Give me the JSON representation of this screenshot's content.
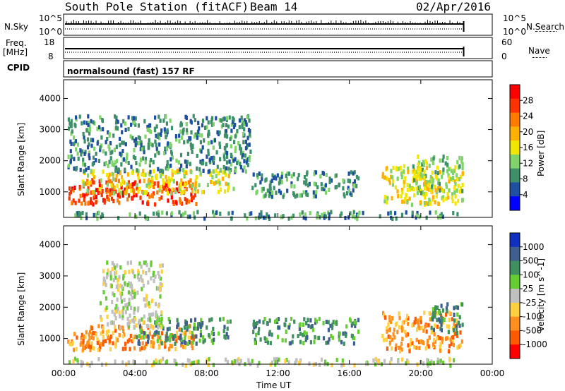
{
  "header": {
    "station": "South Pole Station (fitACF)",
    "beam": "Beam 14",
    "date": "02/Apr/2016"
  },
  "strips": {
    "nsky_label": "N.Sky",
    "nsky_ticks": [
      "10^5",
      "10^0"
    ],
    "nsearch_label": "N.Search",
    "nsearch_ticks": [
      "10^5",
      "10^0"
    ],
    "freq_label_1": "Freq.",
    "freq_label_2": "[MHz]",
    "freq_ticks": [
      "18",
      "8"
    ],
    "nave_label": "Nave",
    "nave_ticks": [
      "60",
      "0"
    ],
    "cpid_label": "CPID",
    "cpid_value": "normalsound (fast) 157 RF"
  },
  "chart_data": [
    {
      "type": "heatmap",
      "name": "power-panel",
      "xlabel": "Time UT",
      "ylabel": "Slant Range [km]",
      "xlim": [
        0,
        24
      ],
      "ylim": [
        180,
        4600
      ],
      "x_ticks": [
        "00:00",
        "04:00",
        "08:00",
        "12:00",
        "16:00",
        "20:00",
        "00:00"
      ],
      "y_ticks": [
        1000,
        2000,
        3000,
        4000
      ],
      "colorbar_label": "Power [dB]",
      "colorbar_ticks": [
        "28",
        "24",
        "20",
        "16",
        "12",
        "8",
        "4"
      ],
      "colorbar_colors": [
        "#ff0000",
        "#ff3300",
        "#ff7a00",
        "#ffb000",
        "#f2e600",
        "#7fd36a",
        "#3f8f6a",
        "#1f4fa0",
        "#0000ff"
      ],
      "data_end_hour": 22.4,
      "scatter_regions": [
        {
          "t0": 0.2,
          "t1": 2.6,
          "r0": 650,
          "r1": 1250,
          "level": 0.93
        },
        {
          "t0": 1.0,
          "t1": 4.5,
          "r0": 700,
          "r1": 1450,
          "level": 0.88
        },
        {
          "t0": 4.6,
          "t1": 7.4,
          "r0": 650,
          "r1": 1500,
          "level": 0.86
        },
        {
          "t0": 1.0,
          "t1": 9.5,
          "r0": 1000,
          "r1": 1750,
          "level": 0.45
        },
        {
          "t0": 0.2,
          "t1": 10.5,
          "r0": 1700,
          "r1": 3500,
          "level": 0.28
        },
        {
          "t0": 10.5,
          "t1": 16.5,
          "r0": 900,
          "r1": 1700,
          "level": 0.22
        },
        {
          "t0": 17.8,
          "t1": 22.3,
          "r0": 650,
          "r1": 1900,
          "level": 0.55
        },
        {
          "t0": 19.5,
          "t1": 22.3,
          "r0": 1000,
          "r1": 2200,
          "level": 0.4
        },
        {
          "t0": 0.2,
          "t1": 22.3,
          "r0": 200,
          "r1": 420,
          "level": 0.3
        }
      ]
    },
    {
      "type": "heatmap",
      "name": "velocity-panel",
      "xlabel": "Time UT",
      "ylabel": "Slant Range [km]",
      "xlim": [
        0,
        24
      ],
      "ylim": [
        180,
        4600
      ],
      "x_ticks": [
        "00:00",
        "04:00",
        "08:00",
        "12:00",
        "16:00",
        "20:00",
        "00:00"
      ],
      "y_ticks": [
        1000,
        2000,
        3000,
        4000
      ],
      "colorbar_label": "Velocity [m s^-1]",
      "colorbar_ticks": [
        "1000",
        "500",
        "100",
        "25",
        "-25",
        "-100",
        "-500",
        "-1000"
      ],
      "colorbar_colors": [
        "#1030c0",
        "#3f5f8f",
        "#3f8f5f",
        "#66cc33",
        "#c0c0c0",
        "#ffd040",
        "#ff9020",
        "#ff5a00",
        "#ff0000"
      ],
      "data_end_hour": 22.4,
      "scatter_regions": [
        {
          "t0": 0.2,
          "t1": 2.6,
          "r0": 650,
          "r1": 1250,
          "level": -0.6
        },
        {
          "t0": 1.0,
          "t1": 7.4,
          "r0": 700,
          "r1": 1500,
          "level": -0.45
        },
        {
          "t0": 4.0,
          "t1": 9.5,
          "r0": 900,
          "r1": 1700,
          "level": 0.5
        },
        {
          "t0": 2.0,
          "t1": 5.5,
          "r0": 1400,
          "r1": 3500,
          "level": 0.05
        },
        {
          "t0": 10.5,
          "t1": 16.5,
          "r0": 900,
          "r1": 1700,
          "level": 0.4
        },
        {
          "t0": 17.8,
          "t1": 22.3,
          "r0": 650,
          "r1": 1900,
          "level": -0.5
        },
        {
          "t0": 20.5,
          "t1": 22.3,
          "r0": 1200,
          "r1": 2200,
          "level": 0.6
        },
        {
          "t0": 0.2,
          "t1": 22.3,
          "r0": 200,
          "r1": 420,
          "level": -0.1
        }
      ]
    }
  ]
}
